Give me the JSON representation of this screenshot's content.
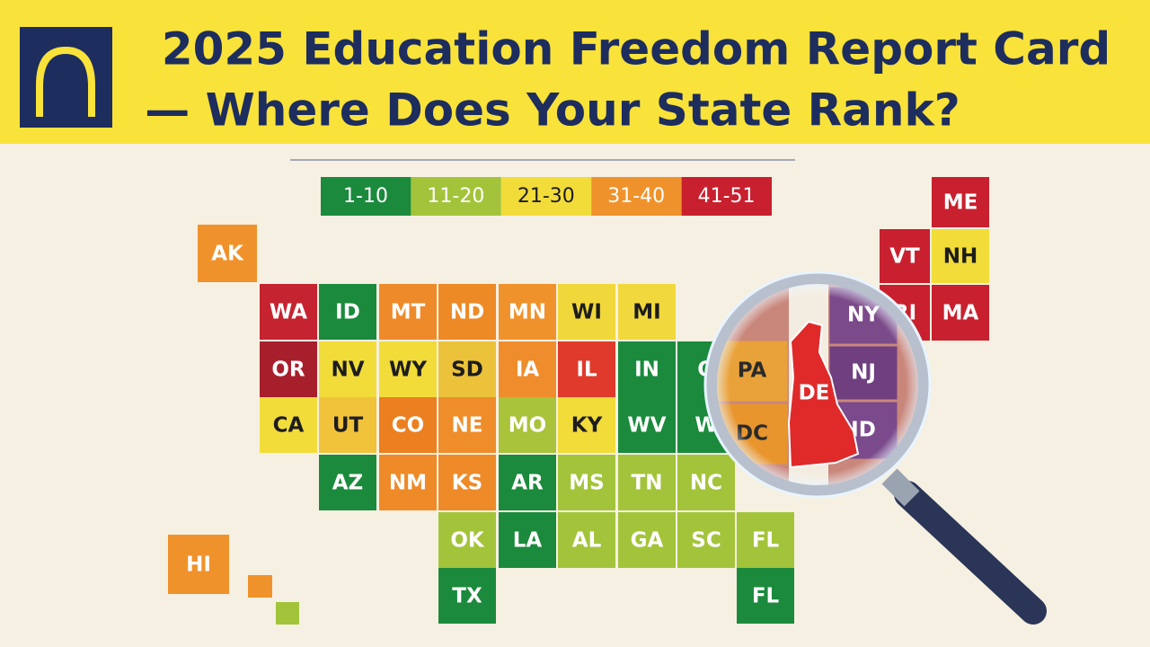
{
  "header": {
    "title_lines": [
      "2025 Education Freedom Report Card",
      "— Where Does Your State Rank?"
    ]
  },
  "legend": [
    {
      "label": "1-10",
      "color": "#1b8a3d"
    },
    {
      "label": "11-20",
      "color": "#a3c43a"
    },
    {
      "label": "21-30",
      "color": "#f2dc3a"
    },
    {
      "label": "31-40",
      "color": "#f0922b"
    },
    {
      "label": "41-51",
      "color": "#c8202e"
    }
  ],
  "tiles": [
    {
      "label": "AK",
      "color": "#f0922b"
    },
    {
      "label": "WA",
      "color": "#c52330"
    },
    {
      "label": "ID",
      "color": "#1b8a3d"
    },
    {
      "label": "MT",
      "color": "#ef8a2a"
    },
    {
      "label": "ND",
      "color": "#ee8a26"
    },
    {
      "label": "MN",
      "color": "#f0922b"
    },
    {
      "label": "WI",
      "color": "#f0d83a"
    },
    {
      "label": "MI",
      "color": "#f1d93d"
    },
    {
      "label": "OR",
      "color": "#a81f2c"
    },
    {
      "label": "NV",
      "color": "#f2dc3a"
    },
    {
      "label": "WY",
      "color": "#f2dc3a"
    },
    {
      "label": "SD",
      "color": "#ebc23a"
    },
    {
      "label": "IA",
      "color": "#ef8c2c"
    },
    {
      "label": "IL",
      "color": "#df3a2b"
    },
    {
      "label": "IN",
      "color": "#1b8a3d"
    },
    {
      "label": "O",
      "color": "#1b8a3d"
    },
    {
      "label": "CA",
      "color": "#f2dc3a"
    },
    {
      "label": "UT",
      "color": "#f0c33a"
    },
    {
      "label": "CO",
      "color": "#ec7f1f"
    },
    {
      "label": "NE",
      "color": "#ef8d2a"
    },
    {
      "label": "MO",
      "color": "#a9c33a"
    },
    {
      "label": "KY",
      "color": "#f2dc3a"
    },
    {
      "label": "WV",
      "color": "#1b8a3d"
    },
    {
      "label": "W",
      "color": "#1b8a3d"
    },
    {
      "label": "AZ",
      "color": "#1b8a3d"
    },
    {
      "label": "NM",
      "color": "#ee8a28"
    },
    {
      "label": "KS",
      "color": "#ee8a28"
    },
    {
      "label": "AR",
      "color": "#1b8a3d"
    },
    {
      "label": "MS",
      "color": "#a3c43a"
    },
    {
      "label": "TN",
      "color": "#a3c43a"
    },
    {
      "label": "NC",
      "color": "#a3c43a"
    },
    {
      "label": "OK",
      "color": "#a3c43a"
    },
    {
      "label": "LA",
      "color": "#1b8a3d"
    },
    {
      "label": "AL",
      "color": "#a3c43a"
    },
    {
      "label": "GA",
      "color": "#a3c43a"
    },
    {
      "label": "SC",
      "color": "#a3c43a"
    },
    {
      "label": "FL",
      "color": "#a3c43a"
    },
    {
      "label": "TX",
      "color": "#1b8a3d"
    },
    {
      "label": "FL",
      "color": "#1b8a3d"
    },
    {
      "label": "HI",
      "color": "#f0922b"
    },
    {
      "label": "ME",
      "color": "#c8202e"
    },
    {
      "label": "VT",
      "color": "#c8202e"
    },
    {
      "label": "NH",
      "color": "#f2dc3a"
    },
    {
      "label": "MA",
      "color": "#c8202e"
    },
    {
      "label": "RI",
      "color": "#c8202e"
    }
  ],
  "magnifier": {
    "tiles": [
      {
        "label": "PA",
        "color": "#e9a23a"
      },
      {
        "label": "DC",
        "color": "#e8952e"
      },
      {
        "label": "NY",
        "color": "#7b4a8a"
      },
      {
        "label": "NJ",
        "color": "#6f3f80"
      },
      {
        "label": "ID",
        "color": "#7a4a8c"
      }
    ],
    "highlight": {
      "label": "DE",
      "color": "#e02a2a"
    }
  }
}
